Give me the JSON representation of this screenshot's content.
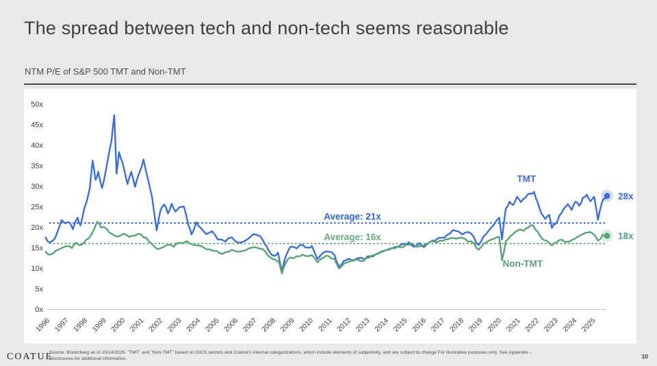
{
  "header": {
    "title": "The spread between tech and non-tech seems reasonable",
    "subtitle": "NTM P/E of S&P 500 TMT and Non-TMT"
  },
  "footer": {
    "logo": "COATUE",
    "source_line1": "Source: Bloomberg as of 10/14/2025. \"TMT\" and \"Non-TMT\" based on GICS sectors and Coatue's internal categorizations, which include elements of subjectivity, and are subject to change For illustrative purposes only. See Appendix –",
    "source_line2": "Disclosures for additional information.",
    "page_number": "10"
  },
  "colors": {
    "tmt": "#3d6ed2",
    "tmt_text": "#2f64cb",
    "non_tmt": "#58a275",
    "non_tmt_text": "#67aa7e",
    "axis_line": "#d2d2d2",
    "tick_text": "#3b3b3b",
    "panel_bg": "#ffffff",
    "page_bg": "#e9e9ea"
  },
  "chart_data": {
    "type": "line",
    "title": "NTM P/E of S&P 500 TMT and Non-TMT",
    "xlabel": "",
    "ylabel": "",
    "ylim": [
      0,
      50
    ],
    "grid": false,
    "legend_position": "inline-labels",
    "y_tick_values": [
      0,
      5,
      10,
      15,
      20,
      25,
      30,
      35,
      40,
      45,
      50
    ],
    "y_tick_suffix": "x",
    "x_tick_years": [
      1996,
      1997,
      1998,
      1999,
      2000,
      2001,
      2002,
      2003,
      2004,
      2005,
      2006,
      2007,
      2008,
      2009,
      2010,
      2011,
      2012,
      2013,
      2014,
      2015,
      2016,
      2017,
      2018,
      2019,
      2020,
      2021,
      2022,
      2023,
      2024,
      2025
    ],
    "averages": [
      {
        "label": "Average: 21x",
        "value": 21,
        "series": "TMT"
      },
      {
        "label": "Average: 16x",
        "value": 16,
        "series": "Non-TMT"
      }
    ],
    "series_labels": [
      {
        "text": "TMT",
        "x": 2021.5,
        "value": 31.0
      },
      {
        "text": "Non-TMT",
        "x": 2021.3,
        "value": 10.3
      }
    ],
    "end_markers": [
      {
        "label": "28x",
        "series": "TMT"
      },
      {
        "label": "18x",
        "series": "Non-TMT"
      }
    ],
    "series": [
      {
        "name": "TMT",
        "x": [
          1995.95,
          1996.15,
          1996.45,
          1996.8,
          1997.0,
          1997.2,
          1997.4,
          1997.65,
          1997.8,
          1998.0,
          1998.15,
          1998.3,
          1998.45,
          1998.6,
          1998.75,
          1998.95,
          1999.1,
          1999.3,
          1999.45,
          1999.6,
          1999.72,
          1999.85,
          2000.05,
          2000.3,
          2000.5,
          2000.7,
          2000.95,
          2001.15,
          2001.4,
          2001.6,
          2001.85,
          2002.05,
          2002.25,
          2002.45,
          2002.65,
          2002.85,
          2003.05,
          2003.3,
          2003.55,
          2003.7,
          2003.95,
          2004.2,
          2004.5,
          2004.8,
          2005.1,
          2005.5,
          2005.85,
          2006.2,
          2006.6,
          2007.0,
          2007.35,
          2007.6,
          2007.8,
          2008.1,
          2008.3,
          2008.5,
          2008.7,
          2008.95,
          2009.3,
          2009.6,
          2009.9,
          2010.1,
          2010.4,
          2010.7,
          2011.0,
          2011.3,
          2011.55,
          2011.8,
          2012.05,
          2012.3,
          2012.6,
          2012.9,
          2013.2,
          2013.5,
          2013.8,
          2014.1,
          2014.4,
          2014.7,
          2015.0,
          2015.25,
          2015.55,
          2015.8,
          2016.05,
          2016.35,
          2016.65,
          2017.0,
          2017.3,
          2017.6,
          2017.85,
          2018.1,
          2018.4,
          2018.7,
          2018.95,
          2019.2,
          2019.5,
          2019.8,
          2020.05,
          2020.2,
          2020.4,
          2020.6,
          2020.8,
          2021.0,
          2021.2,
          2021.45,
          2021.7,
          2021.9,
          2022.1,
          2022.3,
          2022.5,
          2022.7,
          2022.85,
          2023.05,
          2023.25,
          2023.5,
          2023.7,
          2023.9,
          2024.1,
          2024.3,
          2024.5,
          2024.7,
          2024.9,
          2025.1,
          2025.3,
          2025.5,
          2025.65,
          2025.78
        ],
        "values": [
          17.5,
          16.3,
          17.3,
          21.7,
          20.9,
          21.2,
          19.5,
          22.3,
          20.4,
          24.5,
          26.5,
          29.5,
          36.2,
          31.5,
          33.5,
          29.5,
          32.5,
          37.5,
          41.0,
          47.3,
          33.0,
          38.3,
          35.5,
          30.5,
          33.5,
          29.8,
          33.5,
          36.5,
          31.5,
          27.5,
          19.2,
          24.0,
          25.5,
          23.3,
          25.7,
          23.8,
          24.8,
          25.0,
          20.3,
          18.2,
          21.2,
          19.8,
          18.3,
          19.0,
          17.0,
          16.5,
          17.5,
          16.2,
          16.8,
          18.3,
          17.8,
          15.8,
          14.3,
          13.0,
          13.8,
          9.3,
          12.8,
          15.2,
          14.8,
          15.7,
          15.0,
          15.4,
          12.2,
          13.8,
          14.0,
          13.2,
          10.4,
          11.8,
          12.3,
          11.8,
          12.5,
          12.1,
          12.9,
          13.4,
          14.1,
          14.5,
          14.9,
          15.2,
          15.9,
          16.3,
          15.2,
          16.1,
          15.1,
          16.3,
          16.7,
          17.4,
          18.1,
          19.3,
          19.0,
          18.2,
          18.8,
          17.6,
          15.6,
          17.6,
          19.2,
          20.8,
          22.3,
          17.0,
          24.5,
          26.2,
          25.4,
          27.4,
          26.1,
          27.2,
          28.2,
          28.6,
          26.0,
          23.3,
          22.0,
          23.0,
          19.8,
          20.8,
          22.8,
          24.6,
          25.6,
          24.2,
          26.2,
          25.2,
          27.2,
          27.9,
          26.3,
          27.4,
          21.8,
          25.8,
          27.0,
          27.6
        ]
      },
      {
        "name": "Non-TMT",
        "x": [
          1995.95,
          1996.2,
          1996.5,
          1996.8,
          1997.1,
          1997.35,
          1997.6,
          1997.85,
          1998.1,
          1998.3,
          1998.5,
          1998.7,
          1998.9,
          1999.2,
          1999.5,
          1999.8,
          2000.1,
          2000.4,
          2000.7,
          2001.0,
          2001.3,
          2001.6,
          2001.9,
          2002.2,
          2002.5,
          2002.75,
          2003.1,
          2003.45,
          2003.8,
          2004.15,
          2004.5,
          2004.85,
          2005.2,
          2005.5,
          2005.85,
          2006.2,
          2006.55,
          2006.9,
          2007.3,
          2007.65,
          2007.9,
          2008.15,
          2008.35,
          2008.5,
          2008.7,
          2008.95,
          2009.3,
          2009.6,
          2009.9,
          2010.1,
          2010.4,
          2010.7,
          2011.0,
          2011.3,
          2011.55,
          2011.8,
          2012.1,
          2012.4,
          2012.7,
          2013.0,
          2013.3,
          2013.6,
          2013.9,
          2014.2,
          2014.5,
          2014.8,
          2015.1,
          2015.4,
          2015.7,
          2016.0,
          2016.3,
          2016.6,
          2016.9,
          2017.2,
          2017.5,
          2017.8,
          2018.1,
          2018.4,
          2018.7,
          2018.95,
          2019.2,
          2019.5,
          2019.8,
          2020.05,
          2020.2,
          2020.4,
          2020.65,
          2020.85,
          2021.1,
          2021.35,
          2021.6,
          2021.85,
          2022.1,
          2022.35,
          2022.6,
          2022.85,
          2023.1,
          2023.4,
          2023.7,
          2023.95,
          2024.2,
          2024.5,
          2024.75,
          2025.0,
          2025.3,
          2025.55,
          2025.78
        ],
        "values": [
          14.0,
          13.3,
          14.3,
          14.9,
          15.4,
          14.9,
          16.2,
          15.7,
          16.9,
          17.6,
          19.2,
          21.3,
          19.9,
          19.5,
          18.3,
          17.7,
          18.4,
          17.6,
          17.9,
          18.3,
          17.4,
          15.9,
          14.6,
          15.1,
          15.7,
          15.2,
          16.2,
          16.6,
          15.7,
          15.5,
          14.6,
          14.2,
          13.7,
          13.9,
          14.5,
          14.0,
          14.3,
          15.0,
          14.8,
          13.9,
          12.6,
          12.1,
          11.5,
          8.7,
          11.2,
          12.6,
          12.9,
          13.3,
          12.9,
          13.2,
          11.4,
          12.5,
          12.9,
          12.3,
          9.9,
          11.1,
          11.6,
          12.0,
          11.7,
          12.5,
          13.1,
          13.6,
          14.1,
          14.5,
          14.8,
          15.1,
          15.7,
          16.0,
          15.2,
          15.4,
          16.1,
          16.5,
          16.7,
          17.0,
          17.4,
          17.2,
          17.4,
          16.4,
          16.1,
          14.5,
          15.9,
          16.7,
          17.2,
          17.6,
          11.9,
          16.6,
          17.9,
          18.6,
          19.4,
          19.1,
          19.9,
          20.4,
          18.9,
          17.1,
          16.6,
          15.5,
          16.3,
          16.9,
          16.5,
          17.0,
          17.6,
          18.3,
          18.7,
          18.5,
          16.7,
          18.1,
          17.9
        ]
      }
    ]
  }
}
